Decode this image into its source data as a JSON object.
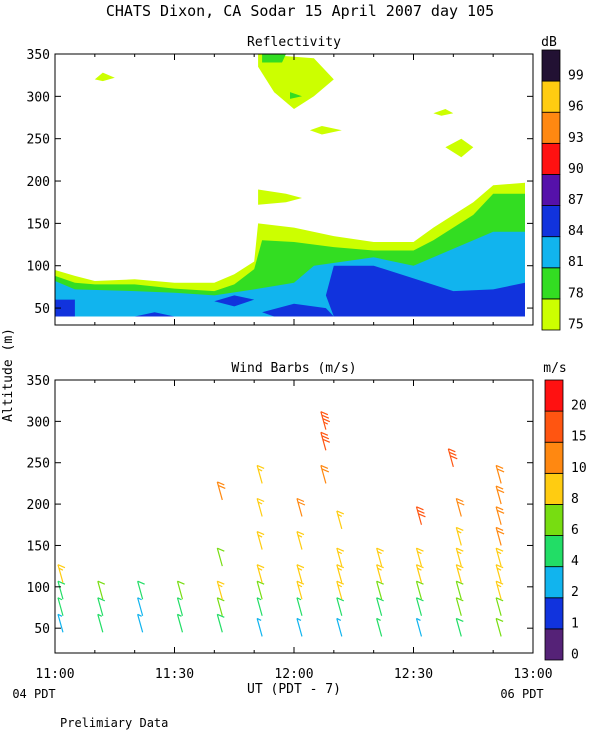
{
  "header": {
    "title": "CHATS Dixon, CA  Sodar  15 April 2007  day 105",
    "footer_note": "Prelimiary Data",
    "xaxis_label": "UT  (PDT - 7)",
    "left_date": "04 PDT",
    "right_date": "06 PDT",
    "shared_ylabel": "Altitude  (m)"
  },
  "chart_data": [
    {
      "type": "heatmap",
      "title": "Reflectivity",
      "colorbar_label": "dB",
      "x_ticks": [
        "11:00",
        "11:30",
        "12:00",
        "12:30",
        "13:00"
      ],
      "xlim": [
        "11:00",
        "13:00"
      ],
      "y_ticks": [
        50,
        100,
        150,
        200,
        250,
        300,
        350
      ],
      "ylim": [
        30,
        350
      ],
      "colorbar": {
        "levels": [
          75,
          78,
          81,
          84,
          87,
          90,
          93,
          96,
          99
        ],
        "colors": [
          "#ccff00",
          "#33dd22",
          "#11b4ee",
          "#1133dd",
          "#5511aa",
          "#ff1111",
          "#ff8811",
          "#ffcc11",
          "#221133"
        ]
      },
      "contours": [
        {
          "level": 75,
          "points": [
            [
              "11:00",
              95
            ],
            [
              "11:05",
              88
            ],
            [
              "11:10",
              82
            ],
            [
              "11:20",
              84
            ],
            [
              "11:30",
              80
            ],
            [
              "11:40",
              80
            ],
            [
              "11:45",
              90
            ],
            [
              "11:50",
              105
            ],
            [
              "11:51",
              150
            ],
            [
              "12:00",
              145
            ],
            [
              "12:10",
              135
            ],
            [
              "12:20",
              128
            ],
            [
              "12:30",
              128
            ],
            [
              "12:35",
              145
            ],
            [
              "12:45",
              175
            ],
            [
              "12:50",
              195
            ],
            [
              "12:58",
              198
            ],
            [
              "12:58",
              40
            ],
            [
              "11:00",
              40
            ]
          ]
        },
        {
          "level": 78,
          "points": [
            [
              "11:00",
              88
            ],
            [
              "11:05",
              80
            ],
            [
              "11:10",
              78
            ],
            [
              "11:20",
              78
            ],
            [
              "11:30",
              73
            ],
            [
              "11:40",
              70
            ],
            [
              "11:45",
              78
            ],
            [
              "11:50",
              96
            ],
            [
              "11:52",
              130
            ],
            [
              "12:00",
              128
            ],
            [
              "12:10",
              122
            ],
            [
              "12:20",
              118
            ],
            [
              "12:30",
              118
            ],
            [
              "12:35",
              130
            ],
            [
              "12:45",
              160
            ],
            [
              "12:50",
              185
            ],
            [
              "12:58",
              185
            ],
            [
              "12:58",
              40
            ],
            [
              "11:00",
              40
            ]
          ]
        },
        {
          "level": 81,
          "points": [
            [
              "11:00",
              82
            ],
            [
              "11:05",
              72
            ],
            [
              "11:20",
              70
            ],
            [
              "11:30",
              68
            ],
            [
              "11:40",
              65
            ],
            [
              "11:50",
              72
            ],
            [
              "12:00",
              80
            ],
            [
              "12:05",
              100
            ],
            [
              "12:20",
              110
            ],
            [
              "12:30",
              100
            ],
            [
              "12:45",
              130
            ],
            [
              "12:50",
              140
            ],
            [
              "12:58",
              140
            ],
            [
              "12:58",
              40
            ],
            [
              "11:00",
              40
            ]
          ]
        },
        {
          "level": 84,
          "points": [
            [
              "11:00",
              60
            ],
            [
              "11:05",
              60
            ],
            [
              "11:05",
              40
            ],
            [
              "11:00",
              40
            ]
          ]
        },
        {
          "level": 84,
          "points": [
            [
              "11:20",
              40
            ],
            [
              "11:25",
              45
            ],
            [
              "11:30",
              40
            ]
          ]
        },
        {
          "level": 84,
          "points": [
            [
              "11:40",
              58
            ],
            [
              "11:45",
              65
            ],
            [
              "11:50",
              60
            ],
            [
              "11:45",
              52
            ]
          ]
        },
        {
          "level": 84,
          "points": [
            [
              "11:52",
              45
            ],
            [
              "12:00",
              55
            ],
            [
              "12:08",
              50
            ],
            [
              "12:10",
              40
            ],
            [
              "11:55",
              40
            ]
          ]
        },
        {
          "level": 84,
          "points": [
            [
              "12:10",
              100
            ],
            [
              "12:20",
              100
            ],
            [
              "12:30",
              85
            ],
            [
              "12:40",
              70
            ],
            [
              "12:50",
              72
            ],
            [
              "12:58",
              80
            ],
            [
              "12:58",
              40
            ],
            [
              "12:10",
              40
            ],
            [
              "12:08",
              65
            ]
          ]
        },
        {
          "level": 75,
          "points": [
            [
              "11:51",
              350
            ],
            [
              "12:05",
              345
            ],
            [
              "12:10",
              320
            ],
            [
              "12:05",
              300
            ],
            [
              "12:00",
              285
            ],
            [
              "11:55",
              305
            ],
            [
              "11:51",
              335
            ]
          ]
        },
        {
          "level": 78,
          "points": [
            [
              "11:52",
              350
            ],
            [
              "11:58",
              350
            ],
            [
              "11:57",
              340
            ],
            [
              "11:52",
              340
            ]
          ]
        },
        {
          "level": 78,
          "points": [
            [
              "11:59",
              305
            ],
            [
              "12:02",
              300
            ],
            [
              "11:59",
              297
            ]
          ]
        },
        {
          "level": 75,
          "points": [
            [
              "11:10",
              320
            ],
            [
              "11:12",
              328
            ],
            [
              "11:15",
              322
            ],
            [
              "11:12",
              318
            ]
          ]
        },
        {
          "level": 75,
          "points": [
            [
              "11:51",
              190
            ],
            [
              "11:58",
              185
            ],
            [
              "12:02",
              180
            ],
            [
              "11:58",
              175
            ],
            [
              "11:51",
              172
            ]
          ]
        },
        {
          "level": 75,
          "points": [
            [
              "12:07",
              265
            ],
            [
              "12:12",
              260
            ],
            [
              "12:07",
              255
            ],
            [
              "12:04",
              260
            ]
          ]
        },
        {
          "level": 75,
          "points": [
            [
              "12:35",
              280
            ],
            [
              "12:38",
              285
            ],
            [
              "12:40",
              280
            ],
            [
              "12:37",
              277
            ]
          ]
        },
        {
          "level": 75,
          "points": [
            [
              "12:38",
              240
            ],
            [
              "12:42",
              250
            ],
            [
              "12:45",
              240
            ],
            [
              "12:42",
              228
            ]
          ]
        }
      ]
    },
    {
      "type": "scatter",
      "title": "Wind Barbs (m/s)",
      "colorbar_label": "m/s",
      "x_ticks": [
        "11:00",
        "11:30",
        "12:00",
        "12:30",
        "13:00"
      ],
      "xlim": [
        "11:00",
        "13:00"
      ],
      "y_ticks": [
        50,
        100,
        150,
        200,
        250,
        300,
        350
      ],
      "ylim": [
        20,
        350
      ],
      "colorbar": {
        "levels": [
          0,
          1,
          2,
          4,
          6,
          8,
          10,
          15,
          20
        ],
        "colors": [
          "#552277",
          "#1133dd",
          "#11b4ee",
          "#22dd66",
          "#77dd11",
          "#ffcc11",
          "#ff8811",
          "#ff5511",
          "#ff1111"
        ]
      },
      "barbs": [
        {
          "x": "11:02",
          "y": 45,
          "speed": 3
        },
        {
          "x": "11:02",
          "y": 65,
          "speed": 4
        },
        {
          "x": "11:02",
          "y": 85,
          "speed": 5
        },
        {
          "x": "11:02",
          "y": 105,
          "speed": 9
        },
        {
          "x": "11:12",
          "y": 45,
          "speed": 4
        },
        {
          "x": "11:12",
          "y": 65,
          "speed": 5
        },
        {
          "x": "11:12",
          "y": 85,
          "speed": 6
        },
        {
          "x": "11:22",
          "y": 45,
          "speed": 3
        },
        {
          "x": "11:22",
          "y": 65,
          "speed": 3
        },
        {
          "x": "11:22",
          "y": 85,
          "speed": 5
        },
        {
          "x": "11:32",
          "y": 45,
          "speed": 4
        },
        {
          "x": "11:32",
          "y": 65,
          "speed": 4
        },
        {
          "x": "11:32",
          "y": 85,
          "speed": 7
        },
        {
          "x": "11:42",
          "y": 45,
          "speed": 5
        },
        {
          "x": "11:42",
          "y": 65,
          "speed": 6
        },
        {
          "x": "11:42",
          "y": 85,
          "speed": 9
        },
        {
          "x": "11:42",
          "y": 125,
          "speed": 6
        },
        {
          "x": "11:42",
          "y": 205,
          "speed": 10
        },
        {
          "x": "11:52",
          "y": 40,
          "speed": 3
        },
        {
          "x": "11:52",
          "y": 65,
          "speed": 4
        },
        {
          "x": "11:52",
          "y": 85,
          "speed": 6
        },
        {
          "x": "11:52",
          "y": 105,
          "speed": 8
        },
        {
          "x": "11:52",
          "y": 145,
          "speed": 9
        },
        {
          "x": "11:52",
          "y": 185,
          "speed": 9
        },
        {
          "x": "11:52",
          "y": 225,
          "speed": 9
        },
        {
          "x": "12:02",
          "y": 40,
          "speed": 3
        },
        {
          "x": "12:02",
          "y": 65,
          "speed": 4
        },
        {
          "x": "12:02",
          "y": 85,
          "speed": 9
        },
        {
          "x": "12:02",
          "y": 105,
          "speed": 9
        },
        {
          "x": "12:02",
          "y": 145,
          "speed": 9
        },
        {
          "x": "12:02",
          "y": 185,
          "speed": 10
        },
        {
          "x": "12:08",
          "y": 225,
          "speed": 12
        },
        {
          "x": "12:08",
          "y": 265,
          "speed": 15
        },
        {
          "x": "12:08",
          "y": 290,
          "speed": 18
        },
        {
          "x": "12:12",
          "y": 40,
          "speed": 3
        },
        {
          "x": "12:12",
          "y": 65,
          "speed": 5
        },
        {
          "x": "12:12",
          "y": 85,
          "speed": 8
        },
        {
          "x": "12:12",
          "y": 105,
          "speed": 9
        },
        {
          "x": "12:12",
          "y": 125,
          "speed": 9
        },
        {
          "x": "12:12",
          "y": 170,
          "speed": 8
        },
        {
          "x": "12:22",
          "y": 40,
          "speed": 4
        },
        {
          "x": "12:22",
          "y": 65,
          "speed": 5
        },
        {
          "x": "12:22",
          "y": 85,
          "speed": 6
        },
        {
          "x": "12:22",
          "y": 105,
          "speed": 9
        },
        {
          "x": "12:22",
          "y": 125,
          "speed": 9
        },
        {
          "x": "12:32",
          "y": 40,
          "speed": 3
        },
        {
          "x": "12:32",
          "y": 65,
          "speed": 5
        },
        {
          "x": "12:32",
          "y": 85,
          "speed": 6
        },
        {
          "x": "12:32",
          "y": 105,
          "speed": 9
        },
        {
          "x": "12:32",
          "y": 125,
          "speed": 9
        },
        {
          "x": "12:32",
          "y": 175,
          "speed": 15
        },
        {
          "x": "12:40",
          "y": 245,
          "speed": 15
        },
        {
          "x": "12:42",
          "y": 40,
          "speed": 5
        },
        {
          "x": "12:42",
          "y": 65,
          "speed": 6
        },
        {
          "x": "12:42",
          "y": 85,
          "speed": 7
        },
        {
          "x": "12:42",
          "y": 105,
          "speed": 9
        },
        {
          "x": "12:42",
          "y": 125,
          "speed": 9
        },
        {
          "x": "12:42",
          "y": 150,
          "speed": 9
        },
        {
          "x": "12:42",
          "y": 185,
          "speed": 10
        },
        {
          "x": "12:52",
          "y": 40,
          "speed": 6
        },
        {
          "x": "12:52",
          "y": 65,
          "speed": 7
        },
        {
          "x": "12:52",
          "y": 85,
          "speed": 8
        },
        {
          "x": "12:52",
          "y": 105,
          "speed": 9
        },
        {
          "x": "12:52",
          "y": 125,
          "speed": 9
        },
        {
          "x": "12:52",
          "y": 150,
          "speed": 10
        },
        {
          "x": "12:52",
          "y": 175,
          "speed": 10
        },
        {
          "x": "12:52",
          "y": 200,
          "speed": 12
        },
        {
          "x": "12:52",
          "y": 225,
          "speed": 12
        }
      ]
    }
  ]
}
